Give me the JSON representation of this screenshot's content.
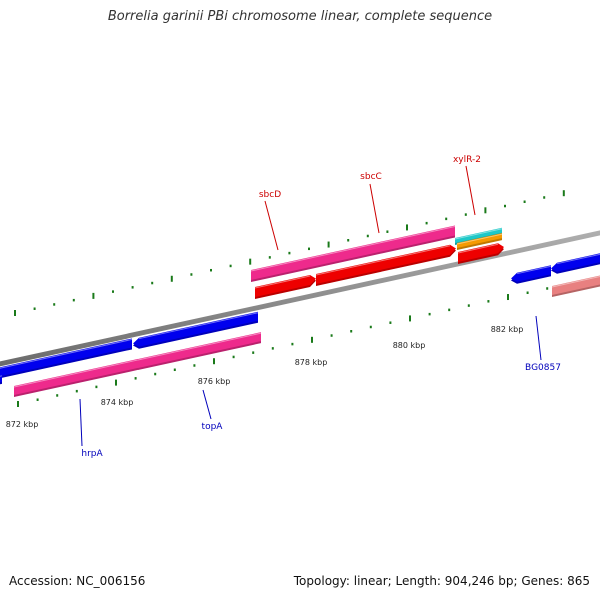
{
  "title": "Borrelia garinii PBi chromosome linear, complete sequence",
  "footer": {
    "accession": "Accession: NC_006156",
    "summary": "Topology: linear; Length: 904,246 bp; Genes: 865"
  },
  "ticks": [
    {
      "label": "872 kbp"
    },
    {
      "label": "874 kbp"
    },
    {
      "label": "876 kbp"
    },
    {
      "label": "878 kbp"
    },
    {
      "label": "880 kbp"
    },
    {
      "label": "882 kbp"
    }
  ],
  "gene_labels": [
    {
      "name": "sbcD",
      "color": "red"
    },
    {
      "name": "sbcC",
      "color": "red"
    },
    {
      "name": "xylR-2",
      "color": "red"
    },
    {
      "name": "hrpA",
      "color": "blue"
    },
    {
      "name": "topA",
      "color": "blue"
    },
    {
      "name": "BG0857",
      "color": "blue"
    }
  ],
  "colors": {
    "blue": "#0000ee",
    "pink": "#ee2a8c",
    "red": "#ee0000",
    "cyan": "#1ec8c8",
    "orange": "#f59a00",
    "salmon": "#e88080",
    "axis": "#888888",
    "tick": "#1a7a1a"
  }
}
